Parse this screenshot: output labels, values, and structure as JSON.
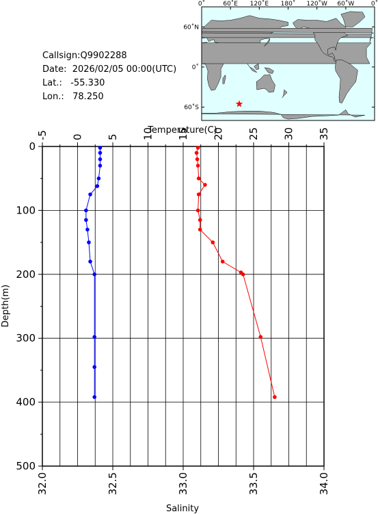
{
  "info": {
    "callsign_label": "Callsign:",
    "callsign": "Q9902288",
    "date_label": "Date:",
    "date": "2026/02/05 00:00(UTC)",
    "lat_label": "Lat.:",
    "lat": "-55.330",
    "lon_label": "Lon.:",
    "lon": "78.250"
  },
  "map": {
    "top_labels": [
      "0˚",
      "60˚E",
      "120˚E",
      "180˚",
      "120˚W",
      "60˚W",
      "0˚"
    ],
    "lat_labels": [
      "60˚N",
      "0˚",
      "60˚S"
    ],
    "marker": {
      "lon": 78.25,
      "lat": -55.33
    },
    "marker_color": "#ff0000",
    "land_color": "#a0a0a0",
    "ocean_color": "#e0ffff"
  },
  "chart_data": {
    "type": "line",
    "top_axis": {
      "label": "Temperature(C)",
      "range": [
        -5,
        35
      ],
      "ticks": [
        -5,
        0,
        5,
        10,
        15,
        20,
        25,
        30,
        35
      ]
    },
    "bottom_axis": {
      "label": "Salinity",
      "range": [
        32.0,
        34.0
      ],
      "ticks": [
        "32.0",
        "32.5",
        "33.0",
        "33.5",
        "34.0"
      ]
    },
    "y_axis": {
      "label": "Depth(m)",
      "range": [
        0,
        500
      ],
      "ticks": [
        0,
        100,
        200,
        300,
        400,
        500
      ],
      "inverted": true
    },
    "grid": true,
    "series": [
      {
        "axis": "salinity",
        "color": "#0000ff",
        "depth": [
          2,
          10,
          20,
          30,
          50,
          62,
          75,
          100,
          115,
          130,
          150,
          180,
          200,
          298,
          345,
          392
        ],
        "values": [
          32.41,
          32.41,
          32.41,
          32.41,
          32.4,
          32.39,
          32.34,
          32.31,
          32.31,
          32.32,
          32.33,
          32.34,
          32.37,
          32.37,
          32.37,
          32.37
        ]
      },
      {
        "axis": "temperature",
        "color": "#ff0000",
        "depth": [
          2,
          10,
          20,
          30,
          50,
          60,
          75,
          100,
          115,
          130,
          150,
          180,
          197,
          200,
          298,
          392
        ],
        "values": [
          17.1,
          16.9,
          17.0,
          17.1,
          17.2,
          18.1,
          17.2,
          17.1,
          17.4,
          17.4,
          19.2,
          20.6,
          23.2,
          23.5,
          26.0,
          28.0
        ]
      }
    ]
  }
}
